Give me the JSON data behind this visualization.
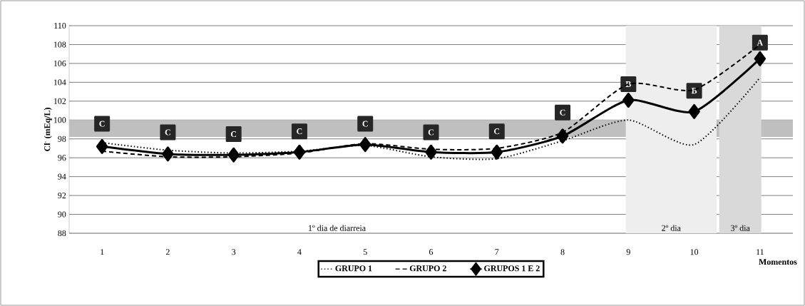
{
  "chart_data": {
    "type": "line",
    "ylabel": "Cl$^{-}$ (mEq/L)",
    "xlabel": "Momentos",
    "x": [
      1,
      2,
      3,
      4,
      5,
      6,
      7,
      8,
      9,
      10,
      11
    ],
    "xlim": [
      0.5,
      11.5
    ],
    "xticks": [
      1,
      2,
      3,
      4,
      5,
      6,
      7,
      8,
      9,
      10,
      11
    ],
    "ylim": [
      88,
      110
    ],
    "yticks": [
      88,
      90,
      92,
      94,
      96,
      98,
      100,
      102,
      104,
      106,
      108,
      110
    ],
    "grid": "y",
    "legend": "bottom",
    "series": [
      {
        "name": "GRUPO 1",
        "color": "#000000",
        "line_style": "dotted",
        "marker": "none",
        "values": [
          97.6,
          96.8,
          96.5,
          96.7,
          97.3,
          96.1,
          95.9,
          97.8,
          100.0,
          97.4,
          104.5
        ]
      },
      {
        "name": "GRUPO 2",
        "color": "#000000",
        "line_style": "dashed",
        "marker": "none",
        "values": [
          96.7,
          96.1,
          96.1,
          96.5,
          97.5,
          96.9,
          97.0,
          98.7,
          103.8,
          103.2,
          108.0
        ]
      },
      {
        "name": "GRUPOS 1 E 2",
        "color": "#000000",
        "line_style": "solid",
        "marker": "diamond",
        "values": [
          97.2,
          96.4,
          96.3,
          96.6,
          97.4,
          96.6,
          96.6,
          98.3,
          102.1,
          100.9,
          106.5
        ]
      }
    ],
    "bands": [
      {
        "axis": "y",
        "from": 98.2,
        "to": 100,
        "color": "#bfbfbf"
      },
      {
        "axis": "x",
        "from": 8.96,
        "to": 10.34,
        "label": "2º dia",
        "color": "#eeeeee"
      },
      {
        "axis": "x",
        "from": 10.38,
        "to": 11.02,
        "label": "3º dia",
        "color": "#d9d9d9"
      }
    ],
    "annotations": [
      "1º dia de diarreia",
      {
        "text": "C",
        "x": 1,
        "y": 99.6
      },
      {
        "text": "C",
        "x": 2,
        "y": 98.7
      },
      {
        "text": "C",
        "x": 3,
        "y": 98.5
      },
      {
        "text": "C",
        "x": 4,
        "y": 98.8
      },
      {
        "text": "C",
        "x": 5,
        "y": 99.6
      },
      {
        "text": "C",
        "x": 6,
        "y": 98.7
      },
      {
        "text": "C",
        "x": 7,
        "y": 98.8
      },
      {
        "text": "C",
        "x": 8,
        "y": 100.8
      },
      {
        "text": "B",
        "x": 9,
        "y": 103.8
      },
      {
        "text": "B",
        "x": 10,
        "y": 103.1
      },
      {
        "text": "A",
        "x": 11,
        "y": 108.2
      }
    ]
  }
}
